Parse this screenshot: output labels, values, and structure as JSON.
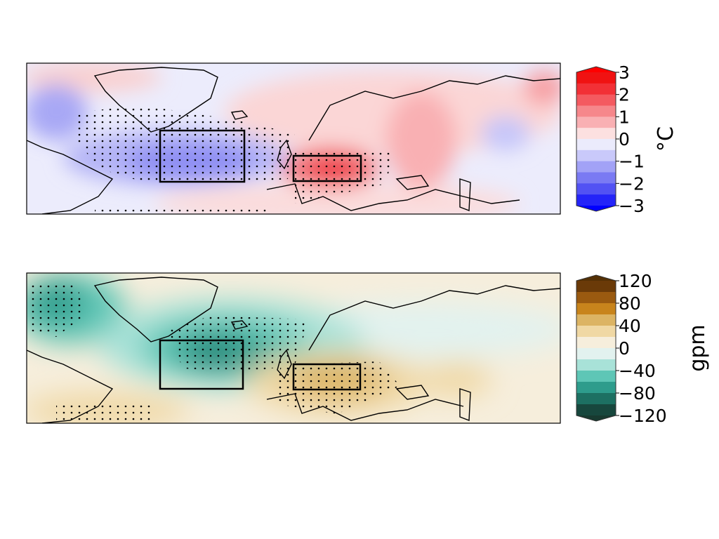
{
  "panels": [
    {
      "name": "temperature-anomaly",
      "colorbar": {
        "unit": "°C",
        "ticks": [
          "3",
          "2",
          "1",
          "0",
          "−1",
          "−2",
          "−3"
        ],
        "colors": [
          "#f01212",
          "#f23036",
          "#f45a60",
          "#f6878b",
          "#f9b0b3",
          "#fce0e0",
          "#ebebfc",
          "#c9c9fa",
          "#a2a2f6",
          "#7a7af3",
          "#5252f3",
          "#2424f8"
        ],
        "extend_high": "#ff0000",
        "extend_low": "#0000ff"
      }
    },
    {
      "name": "geopotential-height-anomaly",
      "colorbar": {
        "unit": "gpm",
        "ticks": [
          "120",
          "80",
          "40",
          "0",
          "−40",
          "−80",
          "−120"
        ],
        "colors": [
          "#6a3a08",
          "#9a5a10",
          "#c8841c",
          "#dcb464",
          "#f0d8a4",
          "#f6eedc",
          "#e2f2ef",
          "#a8e2d8",
          "#5ec6b6",
          "#2e9c8c",
          "#1d7062",
          "#17473d"
        ],
        "extend_high": "#543005",
        "extend_low": "#183a30"
      }
    }
  ]
}
